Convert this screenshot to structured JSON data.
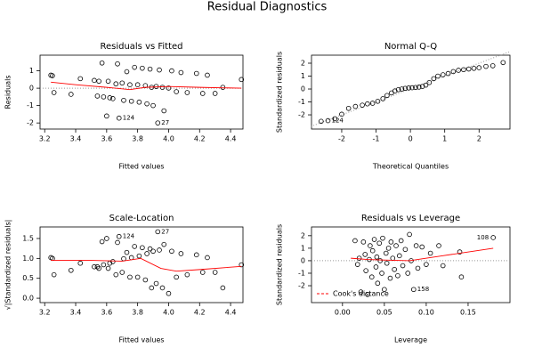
{
  "title": "Residual Diagnostics",
  "chart_data": [
    {
      "type": "scatter",
      "title": "Residuals vs Fitted",
      "xlabel": "Fitted values",
      "ylabel": "Residuals",
      "color": "#000000",
      "x": [
        3.24,
        3.25,
        3.26,
        3.37,
        3.43,
        3.52,
        3.54,
        3.55,
        3.57,
        3.58,
        3.6,
        3.61,
        3.62,
        3.64,
        3.66,
        3.67,
        3.68,
        3.7,
        3.71,
        3.73,
        3.75,
        3.76,
        3.78,
        3.8,
        3.81,
        3.83,
        3.85,
        3.86,
        3.88,
        3.89,
        3.9,
        3.92,
        3.93,
        3.94,
        3.96,
        3.97,
        4.0,
        4.02,
        4.05,
        4.08,
        4.12,
        4.18,
        4.22,
        4.25,
        4.3,
        4.35,
        4.47
      ],
      "values": [
        0.75,
        0.72,
        -0.25,
        -0.35,
        0.55,
        0.45,
        -0.45,
        0.4,
        1.45,
        -0.5,
        -1.6,
        0.4,
        -0.55,
        -0.6,
        0.25,
        1.4,
        -1.72,
        0.3,
        -0.7,
        0.95,
        0.2,
        -0.75,
        1.2,
        0.2,
        -0.8,
        1.15,
        0.15,
        -0.9,
        1.1,
        0.05,
        -1.0,
        0.1,
        -2.0,
        1.05,
        0.05,
        -1.3,
        0.01,
        1.0,
        -0.2,
        0.9,
        -0.25,
        0.85,
        -0.3,
        0.75,
        -0.3,
        0.05,
        0.5
      ],
      "fit": {
        "color": "#ff0000",
        "x": [
          3.24,
          3.4,
          3.6,
          3.75,
          3.85,
          4.0,
          4.2,
          4.47
        ],
        "values": [
          0.35,
          0.2,
          0.05,
          -0.08,
          0.05,
          0.1,
          0.05,
          0.0
        ]
      },
      "hline": 0,
      "annotations": [
        {
          "text": "124",
          "x": 3.68,
          "y": -1.72
        },
        {
          "text": "27",
          "x": 3.93,
          "y": -2.0
        }
      ],
      "xlim": [
        3.17,
        4.48
      ],
      "ylim": [
        -2.35,
        1.9
      ],
      "xticks": [
        3.2,
        3.4,
        3.6,
        3.8,
        {
          "value": 4.0,
          "label": "4.0"
        },
        4.2,
        4.4
      ],
      "yticks": [
        -2,
        -1,
        0,
        1
      ]
    },
    {
      "type": "scatter",
      "title": "Normal Q-Q",
      "xlabel": "Theoretical Quantiles",
      "ylabel": "Standardized residuals",
      "color": "#000000",
      "x": [
        -2.6,
        -2.4,
        -2.2,
        -2.0,
        -1.8,
        -1.6,
        -1.4,
        -1.25,
        -1.1,
        -0.95,
        -0.8,
        -0.68,
        -0.55,
        -0.45,
        -0.35,
        -0.25,
        -0.15,
        -0.05,
        0.05,
        0.15,
        0.25,
        0.35,
        0.45,
        0.55,
        0.68,
        0.8,
        0.95,
        1.1,
        1.25,
        1.4,
        1.55,
        1.7,
        1.85,
        2.0,
        2.2,
        2.4,
        2.7
      ],
      "values": [
        -2.5,
        -2.45,
        -2.3,
        -1.95,
        -1.5,
        -1.35,
        -1.25,
        -1.15,
        -1.1,
        -0.95,
        -0.75,
        -0.5,
        -0.3,
        -0.15,
        -0.05,
        0.0,
        0.05,
        0.08,
        0.1,
        0.12,
        0.15,
        0.2,
        0.3,
        0.5,
        0.8,
        1.0,
        1.1,
        1.2,
        1.35,
        1.45,
        1.5,
        1.55,
        1.6,
        1.65,
        1.75,
        1.8,
        2.05
      ],
      "refline": {
        "x": [
          -2.9,
          2.9
        ],
        "values": [
          -2.9,
          2.9
        ]
      },
      "annotations": [
        {
          "text": "124",
          "x": -2.4,
          "y": -2.45
        }
      ],
      "xlim": [
        -2.88,
        2.9
      ],
      "ylim": [
        -3.1,
        2.62
      ],
      "xticks": [
        -2,
        -1,
        0,
        1,
        2
      ],
      "yticks": [
        -2,
        -1,
        0,
        1,
        2
      ]
    },
    {
      "type": "scatter",
      "title": "Scale-Location",
      "xlabel": "Fitted values",
      "ylabel": "√|Standardized residuals|",
      "color": "#000000",
      "x": [
        3.24,
        3.25,
        3.26,
        3.37,
        3.43,
        3.52,
        3.54,
        3.55,
        3.57,
        3.58,
        3.6,
        3.61,
        3.62,
        3.64,
        3.66,
        3.67,
        3.68,
        3.7,
        3.71,
        3.73,
        3.75,
        3.76,
        3.78,
        3.8,
        3.81,
        3.83,
        3.85,
        3.86,
        3.88,
        3.89,
        3.9,
        3.92,
        3.93,
        3.94,
        3.96,
        3.97,
        4.0,
        4.02,
        4.05,
        4.08,
        4.12,
        4.18,
        4.22,
        4.25,
        4.3,
        4.35,
        4.47
      ],
      "values": [
        1.02,
        1.0,
        0.59,
        0.7,
        0.88,
        0.79,
        0.79,
        0.75,
        1.42,
        0.84,
        1.5,
        0.75,
        0.88,
        0.92,
        0.59,
        1.4,
        1.55,
        0.65,
        0.99,
        1.15,
        0.53,
        1.02,
        1.3,
        0.53,
        1.06,
        1.27,
        0.46,
        1.12,
        1.24,
        0.26,
        1.18,
        0.37,
        1.67,
        1.21,
        0.26,
        1.35,
        0.12,
        1.18,
        0.53,
        1.12,
        0.59,
        1.09,
        0.65,
        1.02,
        0.65,
        0.26,
        0.84
      ],
      "fit": {
        "color": "#ff0000",
        "x": [
          3.24,
          3.5,
          3.7,
          3.82,
          3.95,
          4.05,
          4.2,
          4.47
        ],
        "values": [
          0.95,
          0.95,
          0.93,
          1.0,
          0.75,
          0.68,
          0.72,
          0.8
        ]
      },
      "annotations": [
        {
          "text": "124",
          "x": 3.68,
          "y": 1.55
        },
        {
          "text": "27",
          "x": 3.93,
          "y": 1.67
        }
      ],
      "xlim": [
        3.17,
        4.48
      ],
      "ylim": [
        -0.11,
        1.79
      ],
      "xticks": [
        3.2,
        3.4,
        3.6,
        3.8,
        {
          "value": 4.0,
          "label": "4.0"
        },
        4.2,
        4.4
      ],
      "yticks": [
        {
          "value": 0,
          "label": "0.0"
        },
        0.5,
        {
          "value": 1,
          "label": "1.0"
        },
        1.5
      ]
    },
    {
      "type": "scatter",
      "title": "Residuals vs Leverage",
      "xlabel": "Leverage",
      "ylabel": "Standardized residuals",
      "color": "#000000",
      "x": [
        0.015,
        0.018,
        0.02,
        0.022,
        0.025,
        0.027,
        0.028,
        0.03,
        0.032,
        0.033,
        0.035,
        0.036,
        0.038,
        0.04,
        0.041,
        0.042,
        0.044,
        0.045,
        0.047,
        0.048,
        0.05,
        0.052,
        0.053,
        0.055,
        0.057,
        0.058,
        0.06,
        0.062,
        0.064,
        0.066,
        0.068,
        0.07,
        0.072,
        0.075,
        0.078,
        0.08,
        0.082,
        0.085,
        0.088,
        0.09,
        0.095,
        0.1,
        0.105,
        0.115,
        0.12,
        0.14,
        0.142,
        0.18
      ],
      "values": [
        1.6,
        -0.3,
        0.2,
        -2.5,
        1.5,
        0.5,
        -0.8,
        -2.7,
        0.1,
        1.2,
        -1.3,
        0.8,
        1.7,
        -0.5,
        0.3,
        -1.8,
        1.4,
        0.0,
        -1.0,
        1.8,
        -2.3,
        0.6,
        -0.2,
        1.0,
        -1.4,
        1.5,
        0.2,
        -0.7,
        1.2,
        -1.2,
        0.4,
        1.6,
        -0.4,
        0.9,
        -1.0,
        2.1,
        0.0,
        -2.3,
        1.2,
        -0.6,
        1.1,
        -0.3,
        0.6,
        1.2,
        -0.4,
        0.7,
        -1.3,
        1.85
      ],
      "fit": {
        "color": "#ff0000",
        "x": [
          0.01,
          0.03,
          0.05,
          0.08,
          0.12,
          0.18
        ],
        "values": [
          0.2,
          0.1,
          0.05,
          0.0,
          0.4,
          1.0
        ]
      },
      "hline": 0,
      "annotations": [
        {
          "text": "108",
          "x": 0.18,
          "y": 1.85
        },
        {
          "text": "158",
          "x": 0.085,
          "y": -2.3
        }
      ],
      "legend": {
        "label": "Cook's distance",
        "color": "#ff0000"
      },
      "xlim": [
        -0.037,
        0.2
      ],
      "ylim": [
        -3.35,
        2.7
      ],
      "xticks": [
        {
          "value": 0,
          "label": "0.00"
        },
        0.05,
        {
          "value": 0.1,
          "label": "0.10"
        },
        0.15
      ],
      "yticks": [
        -2,
        -1,
        0,
        1,
        2
      ]
    }
  ]
}
